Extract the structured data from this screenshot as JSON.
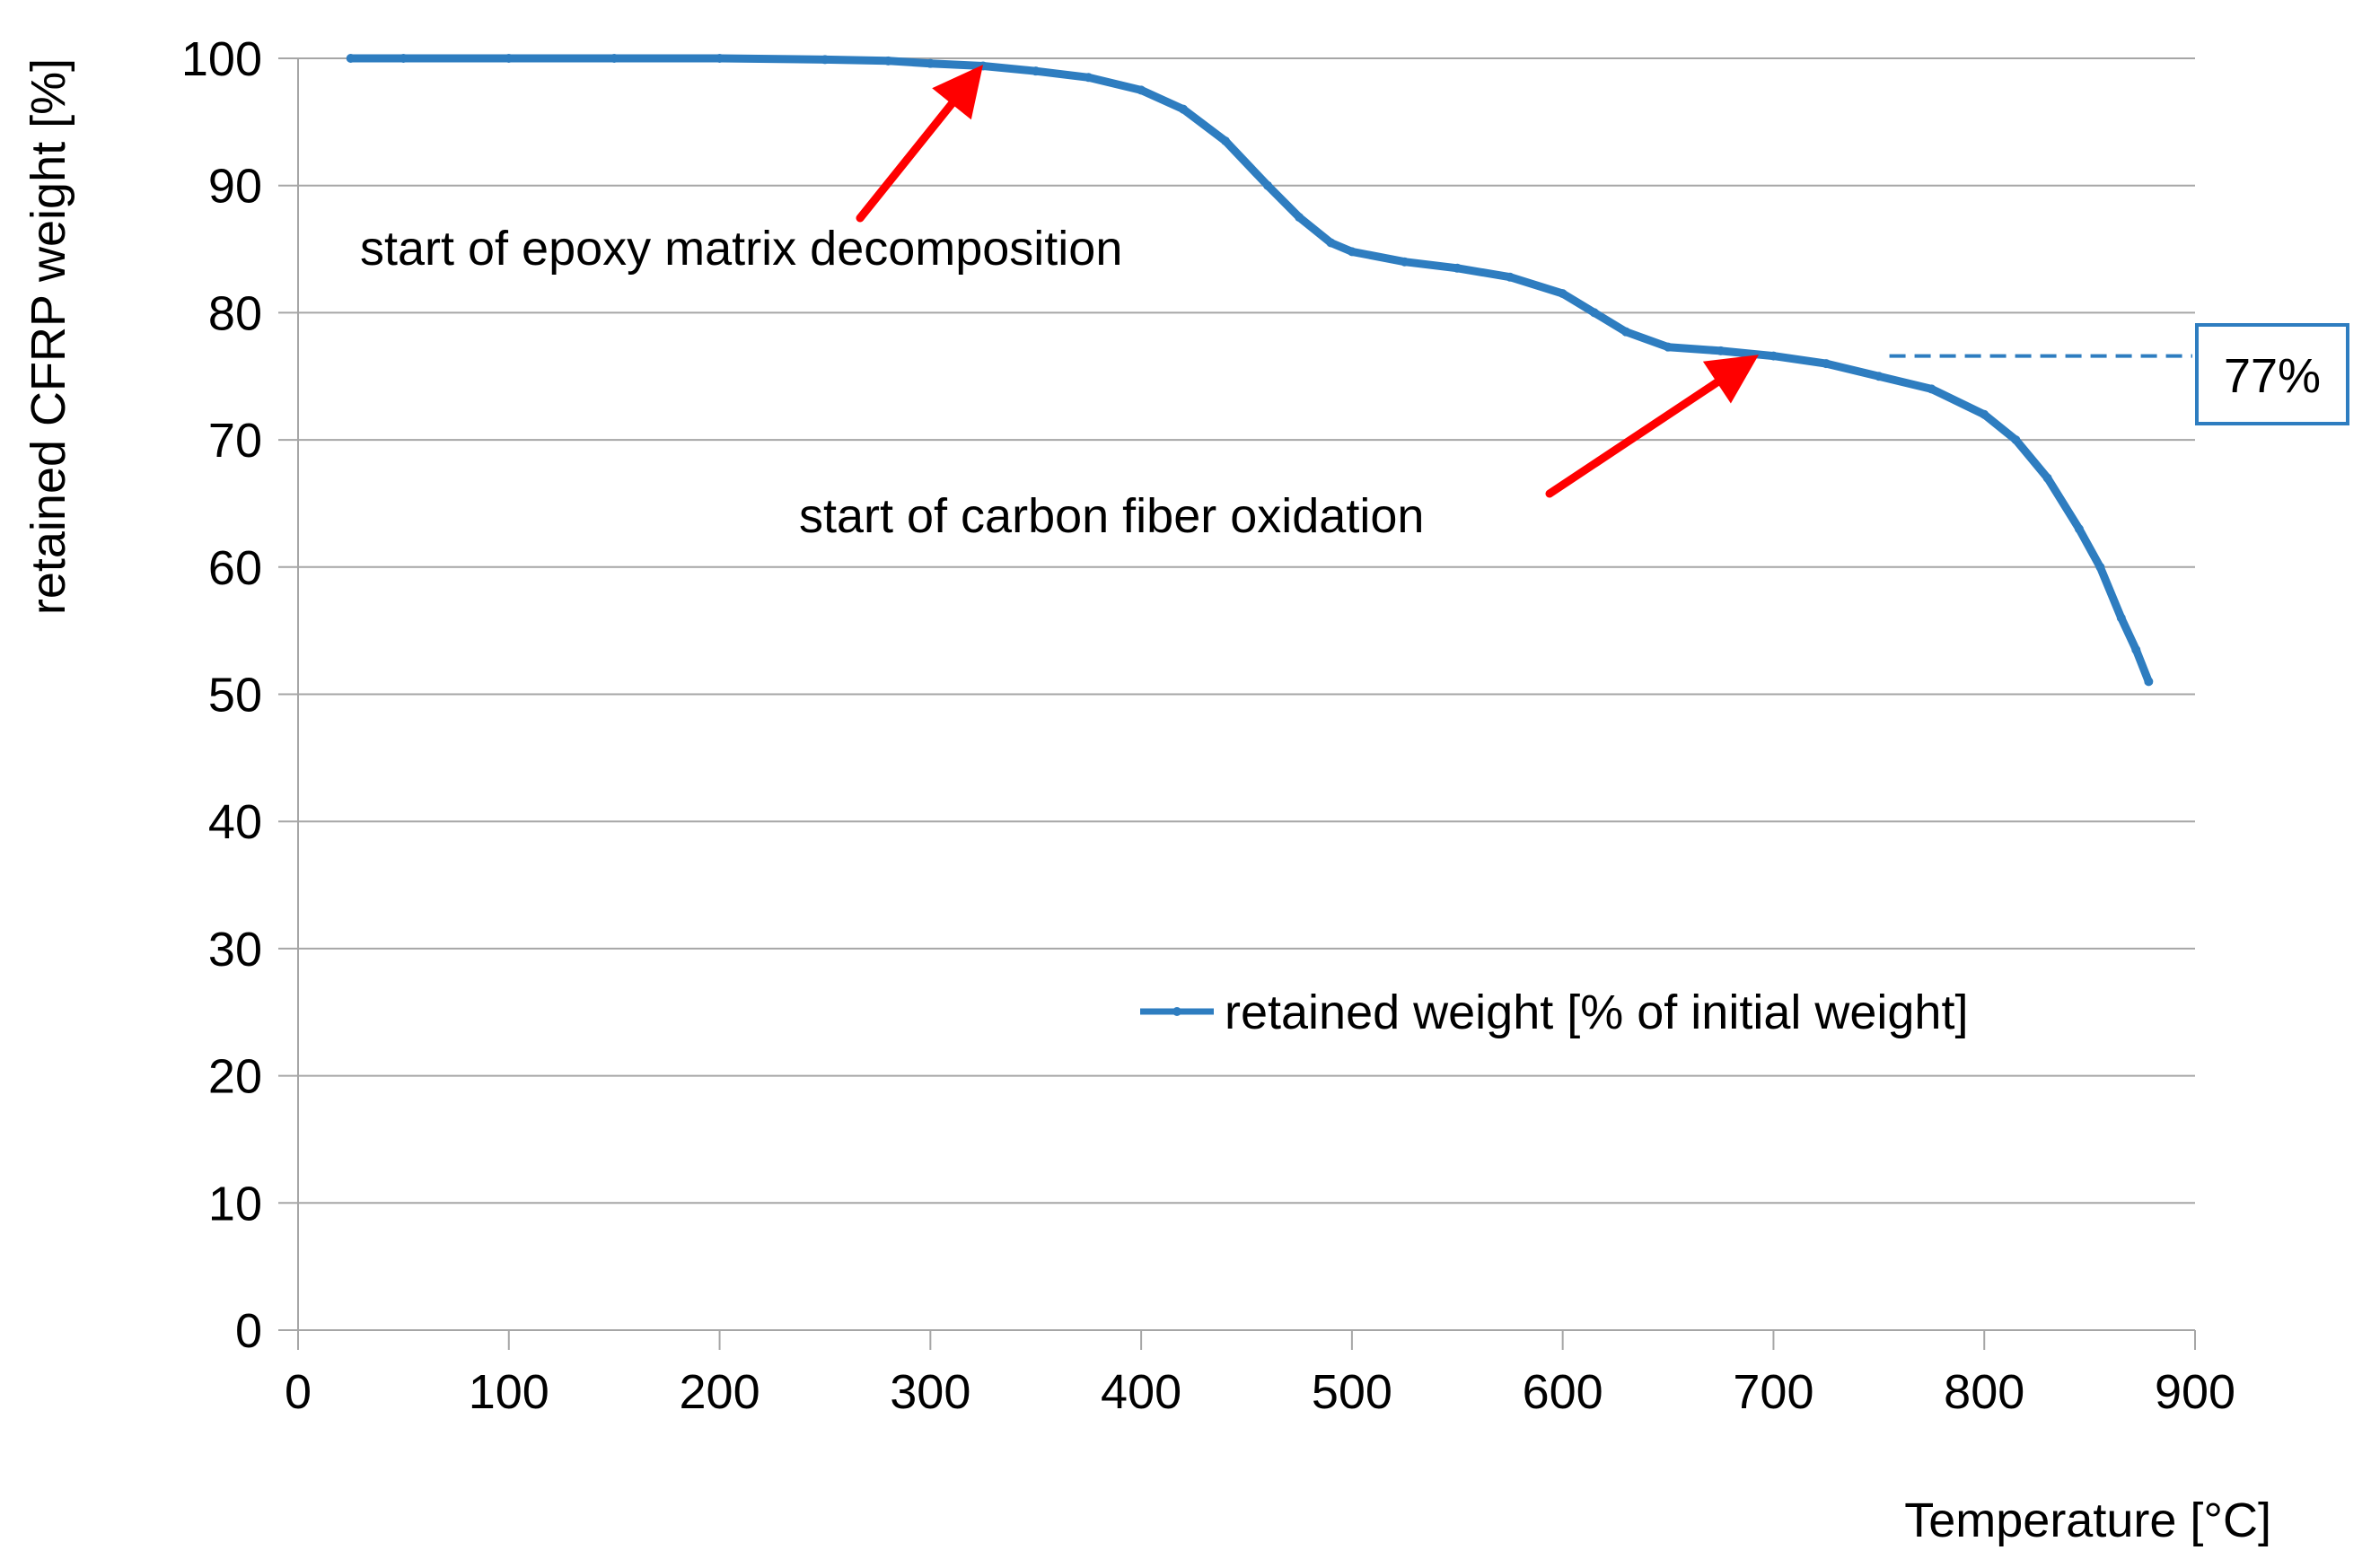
{
  "chart_data": {
    "type": "line",
    "title": "",
    "xlabel": "Temperature  [°C]",
    "ylabel": "retained CFRP weight [%]",
    "xlim": [
      0,
      900
    ],
    "ylim": [
      0,
      100
    ],
    "xticks": [
      0,
      100,
      200,
      300,
      400,
      500,
      600,
      700,
      800,
      900
    ],
    "yticks": [
      0,
      10,
      20,
      30,
      40,
      50,
      60,
      70,
      80,
      90,
      100
    ],
    "grid": "horizontal",
    "legend_position": "lower-right",
    "series": [
      {
        "name": "retained weight [% of initial weight]",
        "color": "#2e7dc0",
        "x": [
          25,
          50,
          100,
          150,
          200,
          250,
          280,
          300,
          325,
          350,
          375,
          400,
          420,
          440,
          460,
          475,
          490,
          500,
          525,
          550,
          575,
          600,
          615,
          630,
          650,
          675,
          700,
          725,
          750,
          775,
          800,
          815,
          830,
          845,
          855,
          865,
          872,
          878
        ],
        "y": [
          100,
          100,
          100,
          100,
          100,
          99.9,
          99.8,
          99.6,
          99.4,
          99.0,
          98.5,
          97.5,
          96.0,
          93.5,
          90.0,
          87.5,
          85.5,
          84.8,
          84.0,
          83.5,
          82.8,
          81.5,
          80.0,
          78.5,
          77.3,
          77.0,
          76.6,
          76.0,
          75.0,
          74.0,
          72.0,
          70.0,
          67.0,
          63.0,
          60.0,
          56.0,
          53.5,
          51.0
        ]
      }
    ],
    "annotations": [
      {
        "text": "start of epoxy matrix decomposition",
        "arrow_to": {
          "x": 325,
          "y": 99.5
        },
        "color": "#ff0000"
      },
      {
        "text": "start of carbon fiber oxidation",
        "arrow_to": {
          "x": 693,
          "y": 76.7
        },
        "color": "#ff0000"
      }
    ],
    "reference_line": {
      "label": "77%",
      "y": 76.6,
      "x_from": 755,
      "color": "#2e7dc0",
      "box_color": "#2e7dc0"
    }
  }
}
